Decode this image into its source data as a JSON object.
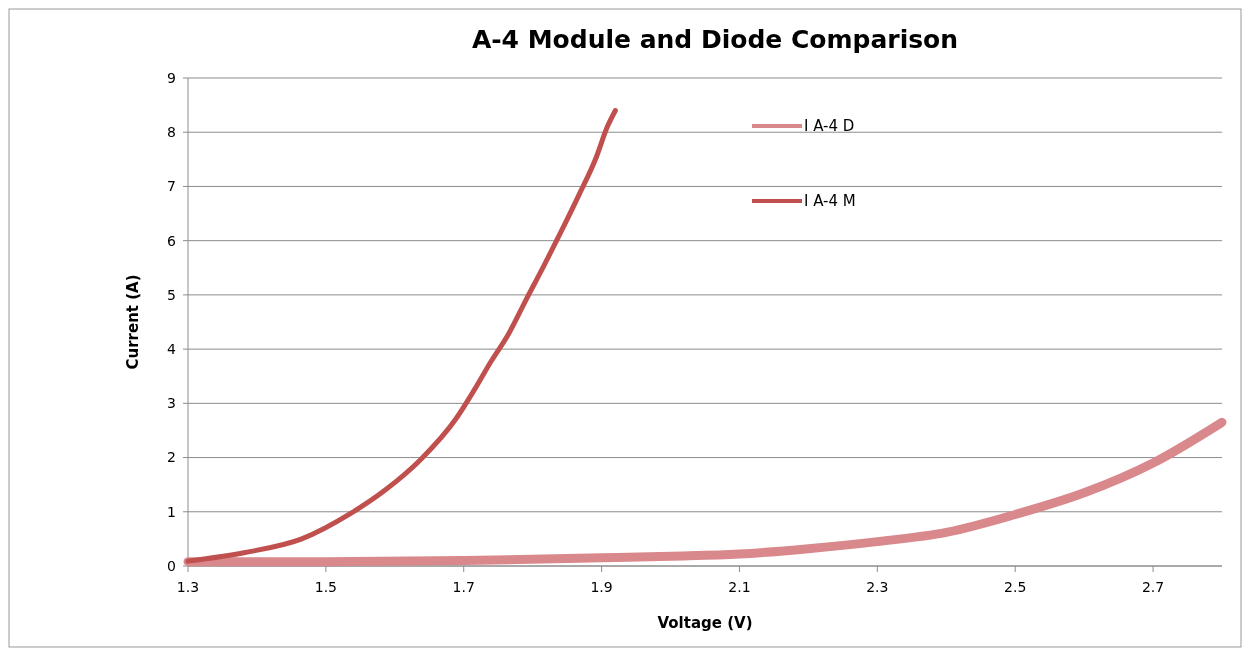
{
  "chart_data": {
    "type": "line",
    "title": "A-4 Module and Diode Comparison",
    "xlabel": "Voltage (V)",
    "ylabel": "Current (A)",
    "xlim": [
      1.3,
      2.8
    ],
    "xticks": [
      1.3,
      1.5,
      1.7,
      1.9,
      2.1,
      2.3,
      2.5,
      2.7
    ],
    "ylim": [
      0,
      9
    ],
    "yticks": [
      0,
      1,
      2,
      3,
      4,
      5,
      6,
      7,
      8,
      9
    ],
    "grid": "y",
    "legend": "top right",
    "marker": "none",
    "line_style": "solid",
    "series": [
      {
        "name": "I A-4 D",
        "color": "#d9888c",
        "x": [
          1.3,
          1.5,
          1.7,
          1.9,
          2.0,
          2.1,
          2.2,
          2.3,
          2.4,
          2.5,
          2.6,
          2.7,
          2.8
        ],
        "values": [
          0.08,
          0.08,
          0.1,
          0.15,
          0.18,
          0.22,
          0.32,
          0.45,
          0.62,
          0.95,
          1.35,
          1.9,
          2.65
        ]
      },
      {
        "name": "I A-4 M",
        "color": "#c0504d",
        "x": [
          1.3,
          1.383,
          1.465,
          1.536,
          1.587,
          1.638,
          1.689,
          1.714,
          1.74,
          1.765,
          1.79,
          1.816,
          1.841,
          1.867,
          1.892,
          1.908,
          1.92
        ],
        "values": [
          0.09,
          0.25,
          0.5,
          0.97,
          1.41,
          1.97,
          2.72,
          3.22,
          3.78,
          4.28,
          4.9,
          5.53,
          6.16,
          6.84,
          7.53,
          8.09,
          8.4
        ]
      }
    ]
  }
}
